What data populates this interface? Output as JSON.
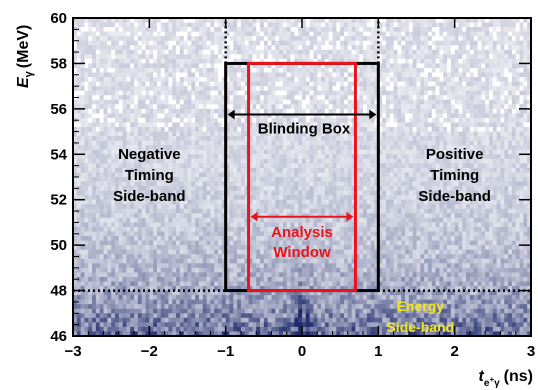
{
  "chart_data": {
    "type": "heatmap",
    "xlabel": {
      "main": "t",
      "sub_base": "e",
      "sub_sup": "+",
      "sub_tail": "γ",
      "unit": "(ns)"
    },
    "ylabel": {
      "main": "E",
      "sub": "γ",
      "unit": "(MeV)"
    },
    "xlim": [
      -3,
      3
    ],
    "ylim": [
      46,
      60
    ],
    "xticks": [
      -3,
      -2,
      -1,
      0,
      1,
      2,
      3
    ],
    "xtick_labels": [
      "−3",
      "−2",
      "−1",
      "0",
      "1",
      "2",
      "3"
    ],
    "yticks": [
      46,
      48,
      50,
      52,
      54,
      56,
      58,
      60
    ],
    "ytick_labels": [
      "46",
      "48",
      "50",
      "52",
      "54",
      "56",
      "58",
      "60"
    ],
    "background_colors": {
      "low": "#ffffff",
      "high": "#1f2a6b"
    },
    "regions": {
      "blinding_box": {
        "label": "Blinding Box",
        "t_range": [
          -1,
          1
        ],
        "e_range": [
          48,
          58
        ],
        "color": "#000000"
      },
      "analysis_window": {
        "label_lines": [
          "Analysis",
          "Window"
        ],
        "t_range": [
          -0.7,
          0.7
        ],
        "e_range": [
          48,
          58
        ],
        "color": "#e8141c"
      },
      "negative_sideband": {
        "label_lines": [
          "Negative",
          "Timing",
          "Side-band"
        ],
        "color": "#000000"
      },
      "positive_sideband": {
        "label_lines": [
          "Positive",
          "Timing",
          "Side-band"
        ],
        "color": "#000000"
      },
      "energy_sideband": {
        "label_lines": [
          "Energy",
          "Side-band"
        ],
        "color": "#f2e61e"
      }
    },
    "energy_threshold": 48,
    "blind_box_top_extension": 60
  }
}
